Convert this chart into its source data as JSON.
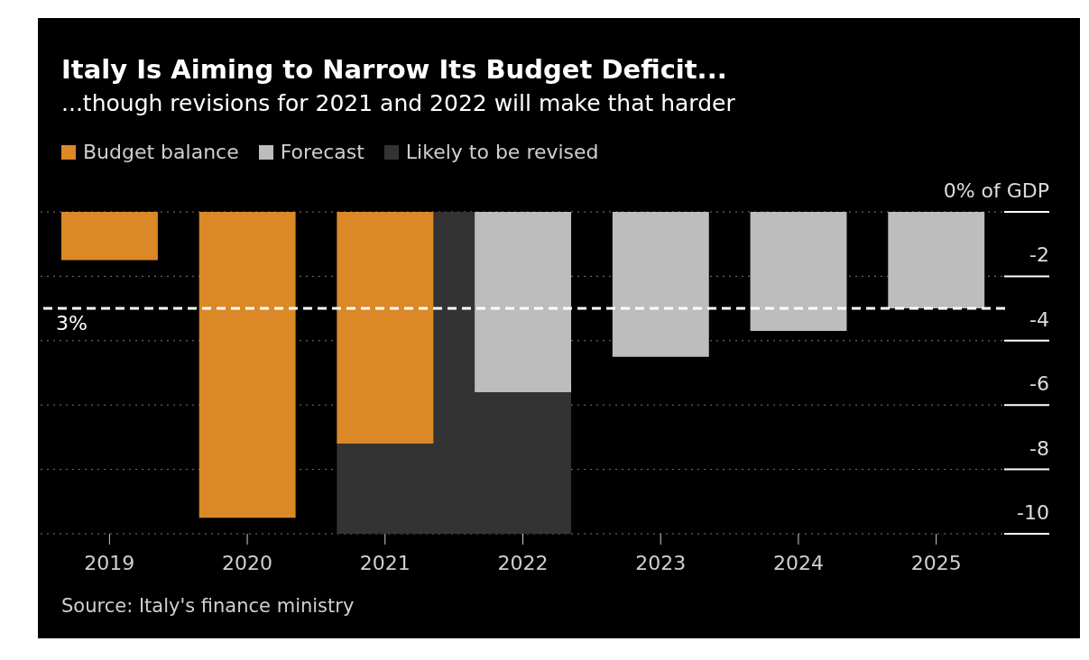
{
  "chart_data": {
    "type": "bar",
    "title": "Italy Is Aiming to Narrow Its Budget Deficit...",
    "subtitle": "...though revisions for 2021 and 2022 will make that harder",
    "categories": [
      "2019",
      "2020",
      "2021",
      "2022",
      "2023",
      "2024",
      "2025"
    ],
    "series": [
      {
        "name": "Budget balance",
        "color": "#db8826",
        "values": [
          -1.5,
          -9.5,
          -7.2,
          null,
          null,
          null,
          null
        ]
      },
      {
        "name": "Forecast",
        "color": "#bdbdbd",
        "values": [
          null,
          null,
          null,
          -5.6,
          -4.5,
          -3.7,
          -3.0
        ]
      }
    ],
    "stacked": true,
    "ylim": [
      -10,
      0
    ],
    "yticks": [
      {
        "value": 0,
        "label": "0% of GDP"
      },
      -2,
      -4,
      -6,
      -8,
      -10
    ],
    "grid": "y",
    "legend": "top left",
    "bands": [
      {
        "axis": "x",
        "from": "2021",
        "to": "2022",
        "label": "Likely to be revised",
        "color": "#333333"
      }
    ],
    "ref_lines": [
      {
        "axis": "y",
        "value": -3,
        "color": "#ffffff",
        "line_style": "dashed"
      }
    ],
    "annotations": [
      {
        "text": "3%",
        "y": -3
      },
      "Source: Italy's finance ministry"
    ]
  }
}
